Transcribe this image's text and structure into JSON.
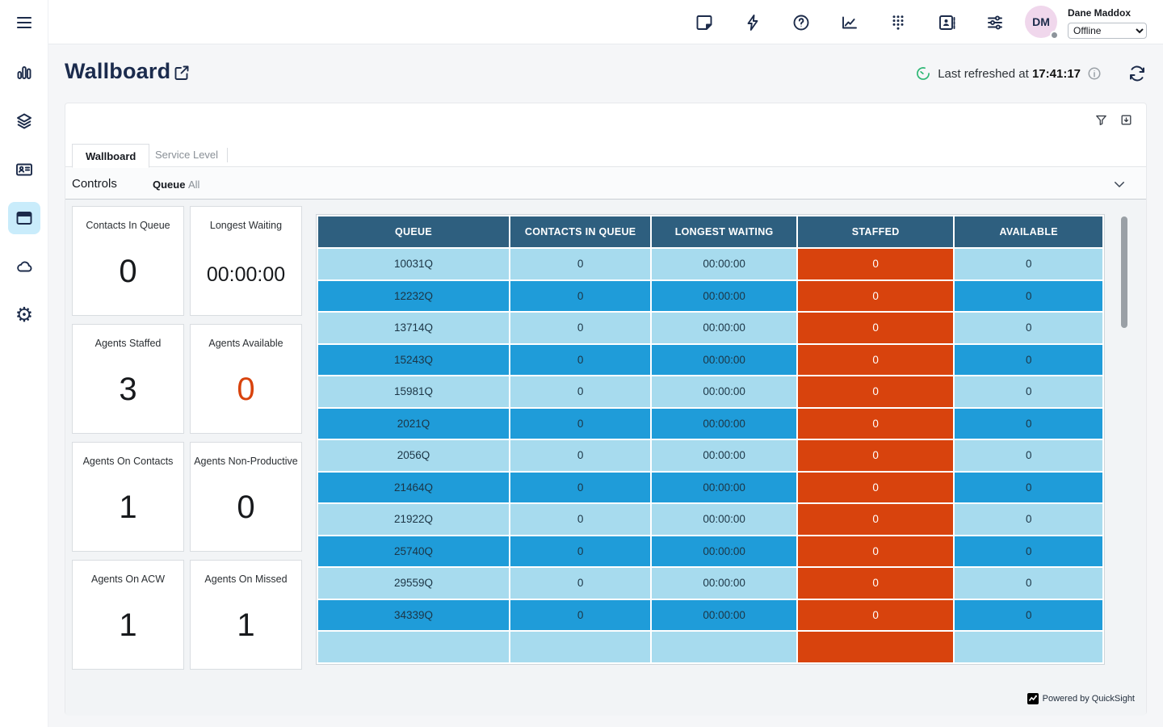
{
  "topbar": {
    "icons": [
      "notes",
      "quick-connects",
      "help",
      "metrics",
      "dialpad",
      "directory",
      "settings-sliders"
    ],
    "user": {
      "initials": "DM",
      "name": "Dane Maddox",
      "status": "Offline"
    }
  },
  "sidebar": {
    "items": [
      {
        "name": "menu"
      },
      {
        "name": "analytics"
      },
      {
        "name": "channels"
      },
      {
        "name": "contacts"
      },
      {
        "name": "dashboards",
        "active": true
      },
      {
        "name": "cloud"
      },
      {
        "name": "settings"
      }
    ]
  },
  "header": {
    "title": "Wallboard",
    "last_refreshed_label": "Last refreshed at",
    "last_refreshed_time": "17:41:17"
  },
  "panel": {
    "tabs": [
      {
        "label": "Wallboard",
        "active": true
      },
      {
        "label": "Service Level",
        "active": false
      }
    ],
    "controls_label": "Controls",
    "queue_label": "Queue",
    "queue_value": "All"
  },
  "kpis": [
    {
      "label": "Contacts In Queue",
      "value": "0"
    },
    {
      "label": "Longest Waiting",
      "value": "00:00:00",
      "small": true
    },
    {
      "label": "Agents Staffed",
      "value": "3"
    },
    {
      "label": "Agents Available",
      "value": "0",
      "orange": true
    },
    {
      "label": "Agents On Contacts",
      "value": "1"
    },
    {
      "label": "Agents Non-Productive",
      "value": "0"
    },
    {
      "label": "Agents On ACW",
      "value": "1"
    },
    {
      "label": "Agents On Missed",
      "value": "1"
    }
  ],
  "table": {
    "headers": [
      "QUEUE",
      "CONTACTS IN QUEUE",
      "LONGEST WAITING",
      "STAFFED",
      "AVAILABLE"
    ],
    "rows": [
      [
        "10031Q",
        "0",
        "00:00:00",
        "0",
        "0"
      ],
      [
        "12232Q",
        "0",
        "00:00:00",
        "0",
        "0"
      ],
      [
        "13714Q",
        "0",
        "00:00:00",
        "0",
        "0"
      ],
      [
        "15243Q",
        "0",
        "00:00:00",
        "0",
        "0"
      ],
      [
        "15981Q",
        "0",
        "00:00:00",
        "0",
        "0"
      ],
      [
        "2021Q",
        "0",
        "00:00:00",
        "0",
        "0"
      ],
      [
        "2056Q",
        "0",
        "00:00:00",
        "0",
        "0"
      ],
      [
        "21464Q",
        "0",
        "00:00:00",
        "0",
        "0"
      ],
      [
        "21922Q",
        "0",
        "00:00:00",
        "0",
        "0"
      ],
      [
        "25740Q",
        "0",
        "00:00:00",
        "0",
        "0"
      ],
      [
        "29559Q",
        "0",
        "00:00:00",
        "0",
        "0"
      ],
      [
        "34339Q",
        "0",
        "00:00:00",
        "0",
        "0"
      ],
      [
        "",
        "",
        "",
        "",
        ""
      ]
    ]
  },
  "footer": {
    "powered_by": "Powered by QuickSight"
  },
  "colors": {
    "table_header_bg": "#2e5f7f",
    "row_light": "#a7dbee",
    "row_dark": "#1f9cd9",
    "staffed_bg": "#d8430d",
    "kpi_alert": "#d8430d",
    "refresh_green": "#2bb673",
    "sidebar_active_bg": "#c9ecfb",
    "icon_navy": "#1c2b4a",
    "avatar_bg": "#f0d7ec"
  }
}
